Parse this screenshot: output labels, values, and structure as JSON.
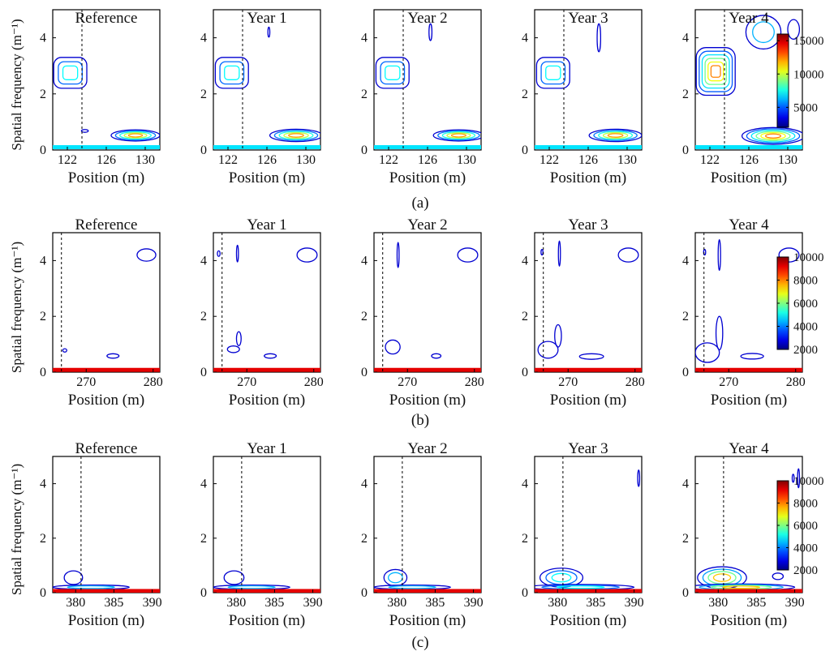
{
  "figure": {
    "rows": [
      {
        "caption": "(a)",
        "ylabel": "Spatial frequency (m⁻¹)"
      },
      {
        "caption": "(b)",
        "ylabel": "Spatial frequency (m⁻¹)"
      },
      {
        "caption": "(c)",
        "ylabel": "Spatial frequency (m⁻¹)"
      }
    ]
  },
  "chart_data": [
    {
      "type": "contour",
      "panel": "(a)",
      "titles": [
        "Reference",
        "Year 1",
        "Year 2",
        "Year 3",
        "Year 4"
      ],
      "xlabel": "Position (m)",
      "ylabel": "Spatial frequency (m⁻¹)",
      "xlim": [
        120.5,
        131.5
      ],
      "xticks": [
        122,
        126,
        130
      ],
      "ylim": [
        0,
        5
      ],
      "yticks": [
        0,
        2,
        4
      ],
      "reference_line_x": 123.5,
      "colorbar": {
        "min": 2000,
        "max": 16000,
        "ticks": [
          5000,
          10000,
          15000
        ],
        "colormap": "jet"
      },
      "subplots": [
        {
          "title": "Reference",
          "features": [
            {
              "shape": "box",
              "cx": 122.3,
              "cy": 2.75,
              "rx": 1.7,
              "ry": 0.55,
              "levels": 3
            },
            {
              "shape": "ellipse",
              "cx": 129.0,
              "cy": 0.52,
              "rx": 2.5,
              "ry": 0.2,
              "levels": 5
            },
            {
              "shape": "ellipse",
              "cx": 123.8,
              "cy": 0.68,
              "rx": 0.35,
              "ry": 0.05,
              "levels": 1
            },
            {
              "shape": "band",
              "y": 0.1
            }
          ]
        },
        {
          "title": "Year 1",
          "features": [
            {
              "shape": "box",
              "cx": 122.4,
              "cy": 2.75,
              "rx": 1.7,
              "ry": 0.55,
              "levels": 3
            },
            {
              "shape": "ellipse",
              "cx": 129.0,
              "cy": 0.52,
              "rx": 2.7,
              "ry": 0.22,
              "levels": 5
            },
            {
              "shape": "ellipse",
              "cx": 126.2,
              "cy": 4.2,
              "rx": 0.1,
              "ry": 0.18,
              "levels": 1
            },
            {
              "shape": "band",
              "y": 0.1
            }
          ]
        },
        {
          "title": "Year 2",
          "features": [
            {
              "shape": "box",
              "cx": 122.4,
              "cy": 2.75,
              "rx": 1.7,
              "ry": 0.55,
              "levels": 3
            },
            {
              "shape": "ellipse",
              "cx": 129.2,
              "cy": 0.52,
              "rx": 2.6,
              "ry": 0.2,
              "levels": 5
            },
            {
              "shape": "ellipse",
              "cx": 126.3,
              "cy": 4.2,
              "rx": 0.15,
              "ry": 0.3,
              "levels": 1
            },
            {
              "shape": "band",
              "y": 0.1
            }
          ]
        },
        {
          "title": "Year 3",
          "features": [
            {
              "shape": "box",
              "cx": 122.4,
              "cy": 2.75,
              "rx": 1.7,
              "ry": 0.55,
              "levels": 3
            },
            {
              "shape": "ellipse",
              "cx": 128.8,
              "cy": 0.52,
              "rx": 2.7,
              "ry": 0.22,
              "levels": 5
            },
            {
              "shape": "ellipse",
              "cx": 127.1,
              "cy": 4.0,
              "rx": 0.18,
              "ry": 0.5,
              "levels": 1
            },
            {
              "shape": "band",
              "y": 0.1
            }
          ]
        },
        {
          "title": "Year 4",
          "features": [
            {
              "shape": "box",
              "cx": 122.6,
              "cy": 2.8,
              "rx": 2.0,
              "ry": 0.85,
              "levels": 6
            },
            {
              "shape": "ellipse",
              "cx": 127.5,
              "cy": 4.2,
              "rx": 1.8,
              "ry": 0.6,
              "levels": 2
            },
            {
              "shape": "ellipse",
              "cx": 130.6,
              "cy": 4.3,
              "rx": 0.6,
              "ry": 0.35,
              "levels": 1
            },
            {
              "shape": "ellipse",
              "cx": 128.5,
              "cy": 0.5,
              "rx": 3.2,
              "ry": 0.3,
              "levels": 6
            },
            {
              "shape": "band",
              "y": 0.1
            }
          ]
        }
      ]
    },
    {
      "type": "contour",
      "panel": "(b)",
      "titles": [
        "Reference",
        "Year 1",
        "Year 2",
        "Year 3",
        "Year 4"
      ],
      "xlabel": "Position (m)",
      "ylabel": "Spatial frequency (m⁻¹)",
      "xlim": [
        265,
        281
      ],
      "xticks": [
        270,
        280
      ],
      "ylim": [
        0,
        5
      ],
      "yticks": [
        0,
        2,
        4
      ],
      "reference_line_x": 266.3,
      "colorbar": {
        "min": 2000,
        "max": 10000,
        "ticks": [
          2000,
          4000,
          6000,
          8000,
          10000
        ],
        "colormap": "jet"
      },
      "subplots": [
        {
          "title": "Reference",
          "features": [
            {
              "shape": "ellipse",
              "cx": 279,
              "cy": 4.2,
              "rx": 1.4,
              "ry": 0.22,
              "levels": 1
            },
            {
              "shape": "ellipse",
              "cx": 266.8,
              "cy": 0.78,
              "rx": 0.3,
              "ry": 0.06,
              "levels": 1
            },
            {
              "shape": "ellipse",
              "cx": 274,
              "cy": 0.58,
              "rx": 0.9,
              "ry": 0.08,
              "levels": 1
            },
            {
              "shape": "band",
              "y": 0.08
            }
          ]
        },
        {
          "title": "Year 1",
          "features": [
            {
              "shape": "ellipse",
              "cx": 279,
              "cy": 4.2,
              "rx": 1.5,
              "ry": 0.25,
              "levels": 1
            },
            {
              "shape": "ellipse",
              "cx": 265.8,
              "cy": 4.25,
              "rx": 0.2,
              "ry": 0.1,
              "levels": 1
            },
            {
              "shape": "ellipse",
              "cx": 268.6,
              "cy": 4.25,
              "rx": 0.12,
              "ry": 0.3,
              "levels": 1
            },
            {
              "shape": "ellipse",
              "cx": 268,
              "cy": 0.82,
              "rx": 0.9,
              "ry": 0.12,
              "levels": 1
            },
            {
              "shape": "ellipse",
              "cx": 268.8,
              "cy": 1.2,
              "rx": 0.35,
              "ry": 0.25,
              "levels": 1
            },
            {
              "shape": "ellipse",
              "cx": 273.5,
              "cy": 0.58,
              "rx": 0.9,
              "ry": 0.08,
              "levels": 1
            },
            {
              "shape": "band",
              "y": 0.08
            }
          ]
        },
        {
          "title": "Year 2",
          "features": [
            {
              "shape": "ellipse",
              "cx": 279,
              "cy": 4.2,
              "rx": 1.5,
              "ry": 0.25,
              "levels": 1
            },
            {
              "shape": "ellipse",
              "cx": 268.6,
              "cy": 4.2,
              "rx": 0.15,
              "ry": 0.45,
              "levels": 1
            },
            {
              "shape": "ellipse",
              "cx": 267.8,
              "cy": 0.9,
              "rx": 1.1,
              "ry": 0.25,
              "levels": 1
            },
            {
              "shape": "ellipse",
              "cx": 274.3,
              "cy": 0.58,
              "rx": 0.7,
              "ry": 0.08,
              "levels": 1
            },
            {
              "shape": "band",
              "y": 0.08
            }
          ]
        },
        {
          "title": "Year 3",
          "features": [
            {
              "shape": "ellipse",
              "cx": 279,
              "cy": 4.2,
              "rx": 1.5,
              "ry": 0.25,
              "levels": 1
            },
            {
              "shape": "ellipse",
              "cx": 266.1,
              "cy": 4.3,
              "rx": 0.12,
              "ry": 0.1,
              "levels": 1
            },
            {
              "shape": "ellipse",
              "cx": 268.7,
              "cy": 4.25,
              "rx": 0.15,
              "ry": 0.45,
              "levels": 1
            },
            {
              "shape": "ellipse",
              "cx": 267,
              "cy": 0.8,
              "rx": 1.5,
              "ry": 0.3,
              "levels": 1
            },
            {
              "shape": "ellipse",
              "cx": 268.5,
              "cy": 1.3,
              "rx": 0.5,
              "ry": 0.4,
              "levels": 1
            },
            {
              "shape": "ellipse",
              "cx": 273.5,
              "cy": 0.56,
              "rx": 1.8,
              "ry": 0.1,
              "levels": 1
            },
            {
              "shape": "band",
              "y": 0.08
            }
          ]
        },
        {
          "title": "Year 4",
          "features": [
            {
              "shape": "ellipse",
              "cx": 279,
              "cy": 4.2,
              "rx": 1.5,
              "ry": 0.25,
              "levels": 1
            },
            {
              "shape": "ellipse",
              "cx": 266.4,
              "cy": 4.3,
              "rx": 0.15,
              "ry": 0.1,
              "levels": 1
            },
            {
              "shape": "ellipse",
              "cx": 268.6,
              "cy": 4.2,
              "rx": 0.18,
              "ry": 0.55,
              "levels": 1
            },
            {
              "shape": "ellipse",
              "cx": 266.8,
              "cy": 0.7,
              "rx": 1.8,
              "ry": 0.35,
              "levels": 1
            },
            {
              "shape": "ellipse",
              "cx": 268.6,
              "cy": 1.4,
              "rx": 0.5,
              "ry": 0.6,
              "levels": 1
            },
            {
              "shape": "ellipse",
              "cx": 273.5,
              "cy": 0.57,
              "rx": 1.7,
              "ry": 0.1,
              "levels": 1
            },
            {
              "shape": "band",
              "y": 0.08
            }
          ]
        }
      ]
    },
    {
      "type": "contour",
      "panel": "(c)",
      "titles": [
        "Reference",
        "Year 1",
        "Year 2",
        "Year 3",
        "Year 4"
      ],
      "xlabel": "Position (m)",
      "ylabel": "Spatial frequency (m⁻¹)",
      "xlim": [
        377,
        391
      ],
      "xticks": [
        380,
        385,
        390
      ],
      "ylim": [
        0,
        5
      ],
      "yticks": [
        0,
        2,
        4
      ],
      "reference_line_x": 380.7,
      "colorbar": {
        "min": 2000,
        "max": 10000,
        "ticks": [
          2000,
          4000,
          6000,
          8000,
          10000
        ],
        "colormap": "jet"
      },
      "subplots": [
        {
          "title": "Reference",
          "features": [
            {
              "shape": "ellipse",
              "cx": 379.7,
              "cy": 0.55,
              "rx": 1.2,
              "ry": 0.25,
              "levels": 1
            },
            {
              "shape": "ellipse",
              "cx": 382,
              "cy": 0.2,
              "rx": 5,
              "ry": 0.08,
              "levels": 2
            },
            {
              "shape": "band",
              "y": 0.06
            }
          ]
        },
        {
          "title": "Year 1",
          "features": [
            {
              "shape": "ellipse",
              "cx": 379.7,
              "cy": 0.55,
              "rx": 1.3,
              "ry": 0.25,
              "levels": 1
            },
            {
              "shape": "ellipse",
              "cx": 382,
              "cy": 0.2,
              "rx": 5,
              "ry": 0.08,
              "levels": 2
            },
            {
              "shape": "band",
              "y": 0.06
            }
          ]
        },
        {
          "title": "Year 2",
          "features": [
            {
              "shape": "ellipse",
              "cx": 379.8,
              "cy": 0.55,
              "rx": 1.5,
              "ry": 0.3,
              "levels": 2
            },
            {
              "shape": "ellipse",
              "cx": 382,
              "cy": 0.2,
              "rx": 5,
              "ry": 0.08,
              "levels": 2
            },
            {
              "shape": "band",
              "y": 0.06
            }
          ]
        },
        {
          "title": "Year 3",
          "features": [
            {
              "shape": "ellipse",
              "cx": 380.5,
              "cy": 0.55,
              "rx": 2.8,
              "ry": 0.35,
              "levels": 3
            },
            {
              "shape": "ellipse",
              "cx": 390.6,
              "cy": 4.2,
              "rx": 0.12,
              "ry": 0.3,
              "levels": 1
            },
            {
              "shape": "ellipse",
              "cx": 383,
              "cy": 0.2,
              "rx": 7,
              "ry": 0.1,
              "levels": 3
            },
            {
              "shape": "band",
              "y": 0.06
            }
          ]
        },
        {
          "title": "Year 4",
          "features": [
            {
              "shape": "ellipse",
              "cx": 380.5,
              "cy": 0.55,
              "rx": 3.2,
              "ry": 0.4,
              "levels": 4
            },
            {
              "shape": "ellipse",
              "cx": 387.8,
              "cy": 0.6,
              "rx": 0.7,
              "ry": 0.12,
              "levels": 1
            },
            {
              "shape": "ellipse",
              "cx": 389.8,
              "cy": 4.2,
              "rx": 0.1,
              "ry": 0.15,
              "levels": 1
            },
            {
              "shape": "ellipse",
              "cx": 390.5,
              "cy": 4.2,
              "rx": 0.12,
              "ry": 0.35,
              "levels": 1
            },
            {
              "shape": "ellipse",
              "cx": 383,
              "cy": 0.2,
              "rx": 7,
              "ry": 0.12,
              "levels": 4
            },
            {
              "shape": "band",
              "y": 0.06
            }
          ]
        }
      ]
    }
  ]
}
